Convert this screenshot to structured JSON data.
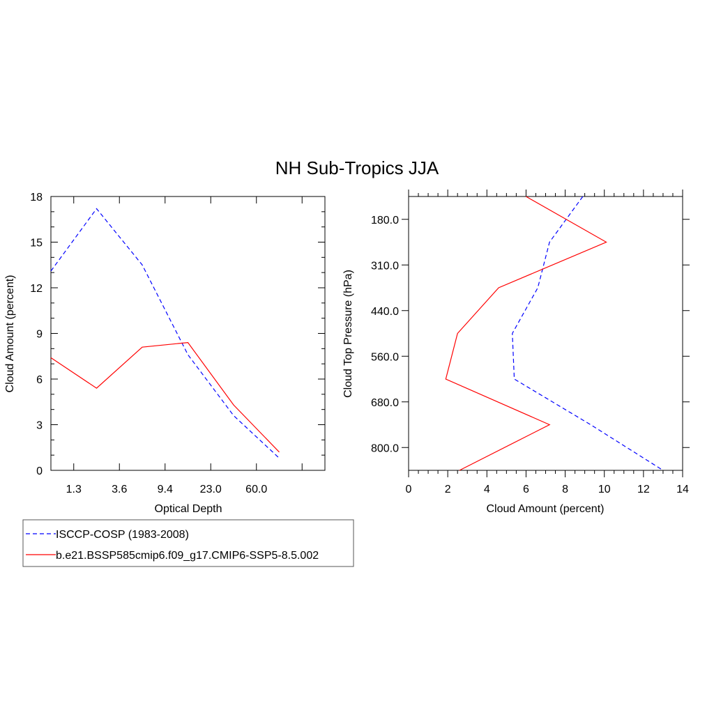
{
  "figure": {
    "title": "NH Sub-Tropics JJA"
  },
  "legend": {
    "entries": [
      {
        "label": "ISCCP-COSP (1983-2008)",
        "color": "#0000ff",
        "dash": "dashed"
      },
      {
        "label": "b.e21.BSSP585cmip6.f09_g17.CMIP6-SSP5-8.5.002",
        "color": "#ff0000",
        "dash": "solid"
      }
    ],
    "placement": "bottom-left"
  },
  "chart_data": [
    {
      "type": "line",
      "title": "",
      "xlabel": "Optical Depth",
      "ylabel": "Cloud Amount (percent)",
      "x_index": [
        0,
        1,
        2,
        3,
        4,
        5,
        6
      ],
      "xlim": [
        0,
        6
      ],
      "x_tick_positions": [
        0.5,
        1.5,
        2.5,
        3.5,
        4.5,
        5.5
      ],
      "x_tick_labels": [
        "1.3",
        "3.6",
        "9.4",
        "23.0",
        "60.0"
      ],
      "x_tick_label_positions": [
        0.5,
        1.5,
        2.5,
        3.5,
        4.5
      ],
      "ylim": [
        0,
        18
      ],
      "y_ticks": [
        0,
        3,
        6,
        9,
        12,
        15,
        18
      ],
      "y_tick_labels": [
        "0",
        "3",
        "6",
        "9",
        "12",
        "15",
        "18"
      ],
      "series": [
        {
          "name": "ISCCP-COSP (1983-2008)",
          "color": "#0000ff",
          "dash": "dashed",
          "values": [
            13.1,
            17.2,
            13.5,
            7.6,
            3.6,
            0.8,
            null
          ]
        },
        {
          "name": "b.e21.BSSP585cmip6.f09_g17.CMIP6-SSP5-8.5.002",
          "color": "#ff0000",
          "dash": "solid",
          "values": [
            7.4,
            5.4,
            8.1,
            8.4,
            4.3,
            1.2,
            null
          ]
        }
      ]
    },
    {
      "type": "line",
      "orientation": "horizontal",
      "title": "",
      "xlabel": "Cloud Amount (percent)",
      "ylabel": "Cloud Top Pressure (hPa)",
      "xlim": [
        0,
        14
      ],
      "x_ticks": [
        0,
        2,
        4,
        6,
        8,
        10,
        12,
        14
      ],
      "x_tick_labels": [
        "0",
        "2",
        "4",
        "6",
        "8",
        "10",
        "12",
        "14"
      ],
      "y_index": [
        0,
        1,
        2,
        3,
        4,
        5,
        6
      ],
      "ylim": [
        0,
        6
      ],
      "y_tick_positions": [
        0.5,
        1.5,
        2.5,
        3.5,
        4.5,
        5.5
      ],
      "y_tick_labels": [
        "180.0",
        "310.0",
        "440.0",
        "560.0",
        "680.0",
        "800.0"
      ],
      "series": [
        {
          "name": "ISCCP-COSP (1983-2008)",
          "color": "#0000ff",
          "dash": "dashed",
          "values": [
            8.9,
            7.2,
            6.6,
            5.3,
            5.4,
            9.3,
            13.0
          ]
        },
        {
          "name": "b.e21.BSSP585cmip6.f09_g17.CMIP6-SSP5-8.5.002",
          "color": "#ff0000",
          "dash": "solid",
          "values": [
            6.0,
            10.1,
            4.6,
            2.5,
            1.9,
            7.2,
            2.6
          ]
        }
      ]
    }
  ]
}
